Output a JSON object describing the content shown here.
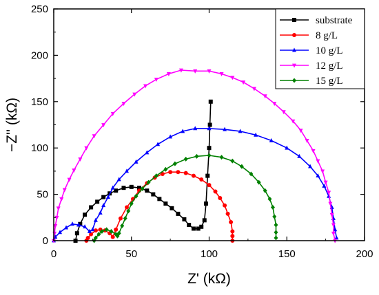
{
  "chart_data": {
    "type": "line",
    "title": "",
    "xlabel": "Z' (kΩ)",
    "ylabel": "−Z'' (kΩ)",
    "xlim": [
      0,
      200
    ],
    "ylim": [
      0,
      250
    ],
    "xticks": [
      0,
      50,
      100,
      150,
      200
    ],
    "yticks": [
      0,
      50,
      100,
      150,
      200,
      250
    ],
    "grid": false,
    "legend_position": "top-right",
    "series": [
      {
        "name": "substrate",
        "color": "#000000",
        "marker": "square",
        "points": [
          [
            14,
            0
          ],
          [
            15,
            8
          ],
          [
            17,
            18
          ],
          [
            20,
            28
          ],
          [
            24,
            36
          ],
          [
            28,
            42
          ],
          [
            32,
            47
          ],
          [
            36,
            51
          ],
          [
            40,
            54
          ],
          [
            45,
            57
          ],
          [
            50,
            58
          ],
          [
            55,
            57
          ],
          [
            60,
            54
          ],
          [
            64,
            50
          ],
          [
            68,
            45
          ],
          [
            72,
            40
          ],
          [
            76,
            35
          ],
          [
            80,
            29
          ],
          [
            84,
            23
          ],
          [
            87,
            17
          ],
          [
            90,
            13
          ],
          [
            93,
            13
          ],
          [
            95,
            15
          ],
          [
            97,
            22
          ],
          [
            98,
            40
          ],
          [
            99,
            70
          ],
          [
            100,
            100
          ],
          [
            100.5,
            125
          ],
          [
            101,
            150
          ]
        ]
      },
      {
        "name": "8 g/L",
        "color": "#ff0000",
        "marker": "circle",
        "points": [
          [
            21,
            0
          ],
          [
            22,
            3
          ],
          [
            24,
            7
          ],
          [
            27,
            11
          ],
          [
            30,
            12
          ],
          [
            33,
            11
          ],
          [
            36,
            8
          ],
          [
            38,
            4
          ],
          [
            40,
            12
          ],
          [
            43,
            24
          ],
          [
            47,
            36
          ],
          [
            51,
            45
          ],
          [
            55,
            54
          ],
          [
            60,
            62
          ],
          [
            65,
            68
          ],
          [
            70,
            72
          ],
          [
            75,
            74
          ],
          [
            80,
            74
          ],
          [
            85,
            73
          ],
          [
            90,
            70
          ],
          [
            95,
            66
          ],
          [
            100,
            60
          ],
          [
            104,
            53
          ],
          [
            107,
            46
          ],
          [
            110,
            38
          ],
          [
            112,
            29
          ],
          [
            114,
            20
          ],
          [
            115,
            10
          ],
          [
            115,
            5
          ],
          [
            115,
            0
          ]
        ]
      },
      {
        "name": "10 g/L",
        "color": "#0000ff",
        "marker": "triangle-up",
        "points": [
          [
            0,
            0
          ],
          [
            1,
            4
          ],
          [
            4,
            9
          ],
          [
            8,
            14
          ],
          [
            12,
            18
          ],
          [
            16,
            17
          ],
          [
            20,
            15
          ],
          [
            23,
            10
          ],
          [
            25,
            12
          ],
          [
            27,
            22
          ],
          [
            30,
            30
          ],
          [
            32,
            38
          ],
          [
            35,
            47
          ],
          [
            38,
            57
          ],
          [
            42,
            66
          ],
          [
            47,
            75
          ],
          [
            53,
            85
          ],
          [
            60,
            95
          ],
          [
            67,
            104
          ],
          [
            75,
            112
          ],
          [
            83,
            118
          ],
          [
            91,
            121
          ],
          [
            100,
            121
          ],
          [
            110,
            120
          ],
          [
            120,
            118
          ],
          [
            130,
            114
          ],
          [
            140,
            108
          ],
          [
            150,
            100
          ],
          [
            158,
            91
          ],
          [
            165,
            80
          ],
          [
            170,
            70
          ],
          [
            174,
            59
          ],
          [
            177,
            48
          ],
          [
            179,
            36
          ],
          [
            180,
            24
          ],
          [
            181,
            12
          ],
          [
            182,
            3
          ]
        ]
      },
      {
        "name": "12 g/L",
        "color": "#ff00ff",
        "marker": "triangle-down",
        "points": [
          [
            0,
            0
          ],
          [
            0.5,
            8
          ],
          [
            1,
            16
          ],
          [
            2,
            25
          ],
          [
            3,
            35
          ],
          [
            5,
            45
          ],
          [
            7,
            55
          ],
          [
            10,
            66
          ],
          [
            13,
            76
          ],
          [
            17,
            88
          ],
          [
            21,
            100
          ],
          [
            26,
            113
          ],
          [
            32,
            125
          ],
          [
            38,
            137
          ],
          [
            45,
            148
          ],
          [
            52,
            158
          ],
          [
            59,
            167
          ],
          [
            66,
            174
          ],
          [
            74,
            180
          ],
          [
            82,
            184
          ],
          [
            91,
            183
          ],
          [
            100,
            183
          ],
          [
            108,
            180
          ],
          [
            115,
            176
          ],
          [
            122,
            171
          ],
          [
            129,
            164
          ],
          [
            136,
            156
          ],
          [
            142,
            148
          ],
          [
            148,
            139
          ],
          [
            154,
            129
          ],
          [
            159,
            119
          ],
          [
            163,
            108
          ],
          [
            167,
            97
          ],
          [
            170,
            86
          ],
          [
            173,
            75
          ],
          [
            175,
            63
          ],
          [
            177,
            52
          ],
          [
            178,
            40
          ],
          [
            179,
            28
          ],
          [
            180,
            17
          ],
          [
            180,
            8
          ],
          [
            181,
            0
          ]
        ]
      },
      {
        "name": "15 g/L",
        "color": "#008000",
        "marker": "diamond",
        "points": [
          [
            26,
            0
          ],
          [
            27,
            3
          ],
          [
            29,
            7
          ],
          [
            31,
            10
          ],
          [
            34,
            12
          ],
          [
            37,
            10
          ],
          [
            40,
            7
          ],
          [
            41,
            5
          ],
          [
            42,
            8
          ],
          [
            44,
            16
          ],
          [
            46,
            24
          ],
          [
            48,
            32
          ],
          [
            50,
            40
          ],
          [
            53,
            48
          ],
          [
            57,
            56
          ],
          [
            61,
            63
          ],
          [
            66,
            70
          ],
          [
            72,
            77
          ],
          [
            78,
            83
          ],
          [
            85,
            88
          ],
          [
            92,
            91
          ],
          [
            100,
            92
          ],
          [
            108,
            90
          ],
          [
            115,
            86
          ],
          [
            121,
            80
          ],
          [
            127,
            72
          ],
          [
            132,
            63
          ],
          [
            136,
            54
          ],
          [
            139,
            45
          ],
          [
            141,
            36
          ],
          [
            142,
            26
          ],
          [
            143,
            17
          ],
          [
            143,
            9
          ],
          [
            143,
            3
          ]
        ]
      }
    ]
  }
}
